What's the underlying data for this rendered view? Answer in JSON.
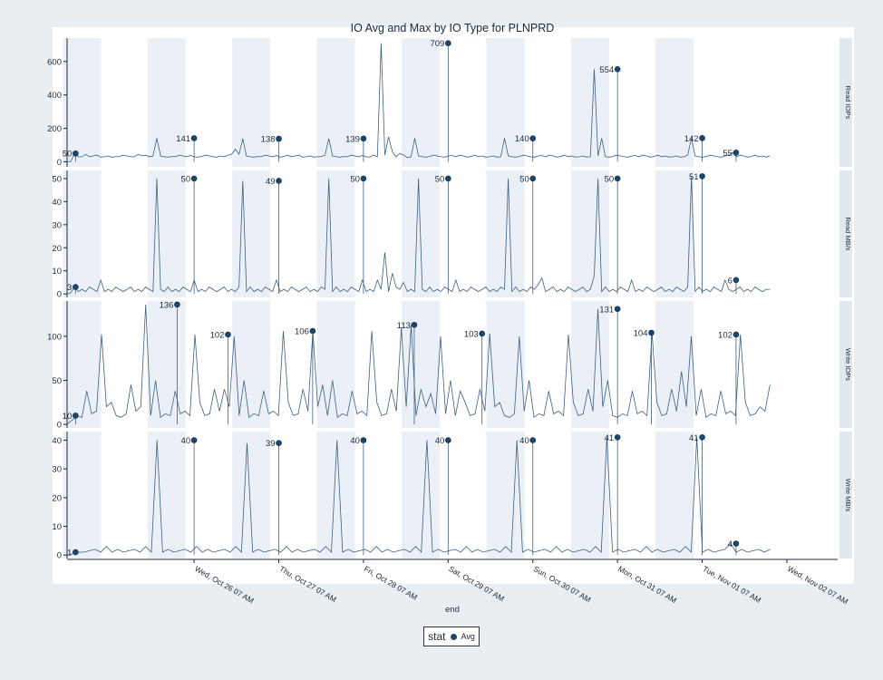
{
  "chart_data": {
    "type": "line",
    "title": "IO Avg and Max by IO Type for PLNPRD",
    "xlabel": "end",
    "x_ticks": [
      "Wed, Oct 26 07 AM",
      "Thu, Oct 27 07 AM",
      "Fri, Oct 28 07 AM",
      "Sat, Oct 29 07 AM",
      "Sun, Oct 30 07 AM",
      "Mon, Oct 31 07 AM",
      "Tue, Nov 01 07 AM",
      "Wed, Nov 02 07 AM"
    ],
    "x_range_days": [
      -1.5,
      7.6
    ],
    "legend": {
      "title": "stat",
      "entries": [
        "Avg"
      ],
      "position": "bottom"
    },
    "panels": [
      {
        "name": "Read IOPs",
        "ylim": [
          -30,
          740
        ],
        "yticks": [
          0,
          200,
          400,
          600
        ],
        "series": [
          {
            "name": "Avg",
            "values": [
              0,
              2,
              50,
              30,
              30,
              45,
              30,
              35,
              40,
              28,
              30,
              35,
              28,
              30,
              32,
              40,
              35,
              30,
              30,
              45,
              35,
              40,
              30,
              35,
              141,
              35,
              30,
              28,
              32,
              30,
              40,
              35,
              30,
              38,
              30,
              28,
              32,
              40,
              35,
              30,
              28,
              35,
              30,
              40,
              45,
              75,
              45,
              138,
              35,
              30,
              28,
              32,
              30,
              40,
              35,
              30,
              38,
              28,
              32,
              40,
              30,
              35,
              40,
              28,
              30,
              35,
              28,
              30,
              32,
              40,
              139,
              35,
              30,
              28,
              32,
              30,
              40,
              35,
              30,
              38,
              30,
              28,
              40,
              30,
              709,
              40,
              150,
              60,
              30,
              50,
              40,
              25,
              30,
              140,
              35,
              30,
              28,
              32,
              40,
              35,
              30,
              28,
              35,
              38,
              30,
              40,
              35,
              28,
              32,
              40,
              30,
              35,
              28,
              30,
              35,
              28,
              30,
              140,
              35,
              30,
              28,
              32,
              40,
              35,
              30,
              28,
              35,
              38,
              30,
              40,
              35,
              28,
              32,
              40,
              30,
              35,
              28,
              30,
              35,
              28,
              30,
              554,
              35,
              140,
              30,
              28,
              32,
              40,
              35,
              30,
              28,
              35,
              38,
              30,
              40,
              35,
              28,
              32,
              40,
              30,
              35,
              28,
              30,
              35,
              28,
              30,
              40,
              142,
              35,
              30,
              28,
              32,
              40,
              35,
              30,
              28,
              35,
              38,
              55,
              30,
              40,
              35,
              28,
              32,
              40,
              30,
              35,
              28,
              35
            ]
          }
        ],
        "markers": [
          {
            "t": -1.4,
            "value": 50,
            "label": "50"
          },
          {
            "t": 0.0,
            "value": 141,
            "label": "141"
          },
          {
            "t": 1.0,
            "value": 138,
            "label": "138"
          },
          {
            "t": 2.0,
            "value": 139,
            "label": "139"
          },
          {
            "t": 3.0,
            "value": 709,
            "label": "709"
          },
          {
            "t": 4.0,
            "value": 140,
            "label": "140"
          },
          {
            "t": 5.0,
            "value": 554,
            "label": "554"
          },
          {
            "t": 6.0,
            "value": 142,
            "label": "142"
          },
          {
            "t": 6.4,
            "value": 55,
            "label": "55"
          }
        ]
      },
      {
        "name": "Read MB/s",
        "ylim": [
          -1.5,
          53.5
        ],
        "yticks": [
          0,
          10,
          20,
          30,
          40,
          50
        ],
        "series": [
          {
            "name": "Avg",
            "values": [
              0,
              0.5,
              3,
              1,
              2,
              1,
              3,
              2,
              1,
              6,
              1,
              2,
              1,
              3,
              2,
              1,
              2,
              3,
              1,
              2,
              1,
              3,
              2,
              1,
              50,
              2,
              1,
              3,
              1,
              2,
              1,
              3,
              2,
              1,
              6,
              1,
              2,
              1,
              3,
              2,
              1,
              2,
              3,
              1,
              2,
              1,
              3,
              49,
              1,
              3,
              1,
              2,
              1,
              3,
              2,
              1,
              6,
              1,
              2,
              1,
              3,
              2,
              1,
              2,
              3,
              1,
              2,
              1,
              3,
              2,
              50,
              1,
              3,
              1,
              2,
              1,
              3,
              2,
              1,
              6,
              1,
              2,
              1,
              6,
              2,
              18,
              1,
              9,
              3,
              2,
              5,
              1,
              2,
              1,
              50,
              2,
              1,
              3,
              1,
              2,
              1,
              3,
              2,
              1,
              6,
              1,
              2,
              1,
              3,
              2,
              1,
              2,
              3,
              1,
              2,
              1,
              3,
              2,
              50,
              1,
              3,
              1,
              2,
              1,
              3,
              2,
              4,
              7,
              1,
              2,
              3,
              1,
              2,
              1,
              3,
              2,
              1,
              2,
              3,
              1,
              2,
              8,
              50,
              1,
              3,
              1,
              2,
              1,
              3,
              2,
              1,
              6,
              1,
              2,
              1,
              3,
              2,
              1,
              2,
              3,
              1,
              2,
              1,
              3,
              2,
              1,
              3,
              51,
              1,
              3,
              1,
              2,
              1,
              3,
              2,
              1,
              6,
              2,
              1,
              2,
              3,
              1,
              2,
              1,
              3,
              2,
              1,
              2,
              2
            ]
          }
        ],
        "markers": [
          {
            "t": -1.4,
            "value": 3,
            "label": "3"
          },
          {
            "t": 0.0,
            "value": 50,
            "label": "50"
          },
          {
            "t": 1.0,
            "value": 49,
            "label": "49"
          },
          {
            "t": 2.0,
            "value": 50,
            "label": "50"
          },
          {
            "t": 3.0,
            "value": 50,
            "label": "50"
          },
          {
            "t": 4.0,
            "value": 50,
            "label": "50"
          },
          {
            "t": 5.0,
            "value": 50,
            "label": "50"
          },
          {
            "t": 6.0,
            "value": 51,
            "label": "51"
          },
          {
            "t": 6.4,
            "value": 6,
            "label": "6"
          }
        ]
      },
      {
        "name": "Write IOPs",
        "ylim": [
          -4,
          140
        ],
        "yticks": [
          0,
          50,
          100
        ],
        "series": [
          {
            "name": "Avg",
            "values": [
              0,
              5,
              10,
              8,
              38,
              12,
              15,
              102,
              20,
              25,
              10,
              8,
              12,
              45,
              15,
              20,
              136,
              10,
              50,
              8,
              12,
              10,
              38,
              12,
              15,
              10,
              102,
              25,
              10,
              12,
              40,
              15,
              40,
              20,
              100,
              10,
              50,
              8,
              12,
              10,
              38,
              12,
              15,
              10,
              106,
              25,
              10,
              12,
              40,
              15,
              106,
              20,
              45,
              10,
              50,
              8,
              12,
              10,
              38,
              12,
              15,
              10,
              106,
              25,
              10,
              12,
              40,
              15,
              110,
              20,
              113,
              10,
              40,
              20,
              35,
              12,
              100,
              12,
              50,
              10,
              38,
              25,
              10,
              12,
              40,
              15,
              103,
              20,
              25,
              10,
              8,
              12,
              100,
              15,
              50,
              8,
              12,
              10,
              38,
              12,
              15,
              10,
              102,
              25,
              10,
              12,
              40,
              15,
              131,
              20,
              50,
              10,
              8,
              12,
              10,
              38,
              12,
              15,
              10,
              104,
              25,
              10,
              12,
              40,
              15,
              60,
              20,
              100,
              10,
              40,
              8,
              12,
              10,
              38,
              12,
              15,
              10,
              102,
              25,
              10,
              12,
              20,
              15,
              45
            ]
          }
        ],
        "markers": [
          {
            "t": -1.4,
            "value": 10,
            "label": "10"
          },
          {
            "t": -0.2,
            "value": 136,
            "label": "136"
          },
          {
            "t": 0.4,
            "value": 102,
            "label": "102"
          },
          {
            "t": 1.4,
            "value": 106,
            "label": "106"
          },
          {
            "t": 2.6,
            "value": 113,
            "label": "113"
          },
          {
            "t": 3.4,
            "value": 103,
            "label": "103"
          },
          {
            "t": 5.0,
            "value": 131,
            "label": "131"
          },
          {
            "t": 5.4,
            "value": 104,
            "label": "104"
          },
          {
            "t": 6.4,
            "value": 102,
            "label": "102"
          }
        ]
      },
      {
        "name": "Write MB/s",
        "ylim": [
          -1.2,
          43
        ],
        "yticks": [
          0,
          10,
          20,
          30,
          40
        ],
        "series": [
          {
            "name": "Avg",
            "values": [
              0,
              0.5,
              1,
              1,
              1.5,
              2,
              1,
              3,
              1,
              2,
              1,
              1.5,
              2,
              1,
              3,
              1,
              40,
              1,
              2,
              1,
              1.5,
              2,
              1,
              3,
              1,
              2,
              1,
              1.5,
              2,
              1,
              3,
              1,
              39,
              1,
              2,
              1,
              1.5,
              2,
              1,
              3,
              1,
              2,
              1,
              1.5,
              2,
              1,
              3,
              1,
              40,
              1,
              2,
              1,
              1.5,
              2,
              1,
              3,
              1,
              2,
              1,
              1.5,
              2,
              1,
              3,
              1,
              40,
              1,
              2,
              1,
              1.5,
              2,
              1,
              3,
              1,
              2,
              1,
              1.5,
              2,
              1,
              3,
              1,
              40,
              1,
              2,
              1,
              1.5,
              2,
              1,
              3,
              1,
              2,
              1,
              1.5,
              2,
              1,
              3,
              1,
              41,
              1,
              2,
              1,
              1.5,
              2,
              1,
              3,
              1,
              2,
              1,
              1.5,
              2,
              1,
              3,
              1,
              41,
              1,
              2,
              1,
              1.5,
              2,
              4,
              1,
              2,
              1,
              1.5,
              2,
              1,
              2
            ]
          }
        ],
        "markers": [
          {
            "t": -1.4,
            "value": 1,
            "label": "1"
          },
          {
            "t": 0.0,
            "value": 40,
            "label": "40"
          },
          {
            "t": 1.0,
            "value": 39,
            "label": "39"
          },
          {
            "t": 2.0,
            "value": 40,
            "label": "40"
          },
          {
            "t": 3.0,
            "value": 40,
            "label": "40"
          },
          {
            "t": 4.0,
            "value": 40,
            "label": "40"
          },
          {
            "t": 5.0,
            "value": 41,
            "label": "41"
          },
          {
            "t": 6.0,
            "value": 41,
            "label": "41"
          },
          {
            "t": 6.4,
            "value": 4,
            "label": "4"
          }
        ]
      }
    ]
  }
}
